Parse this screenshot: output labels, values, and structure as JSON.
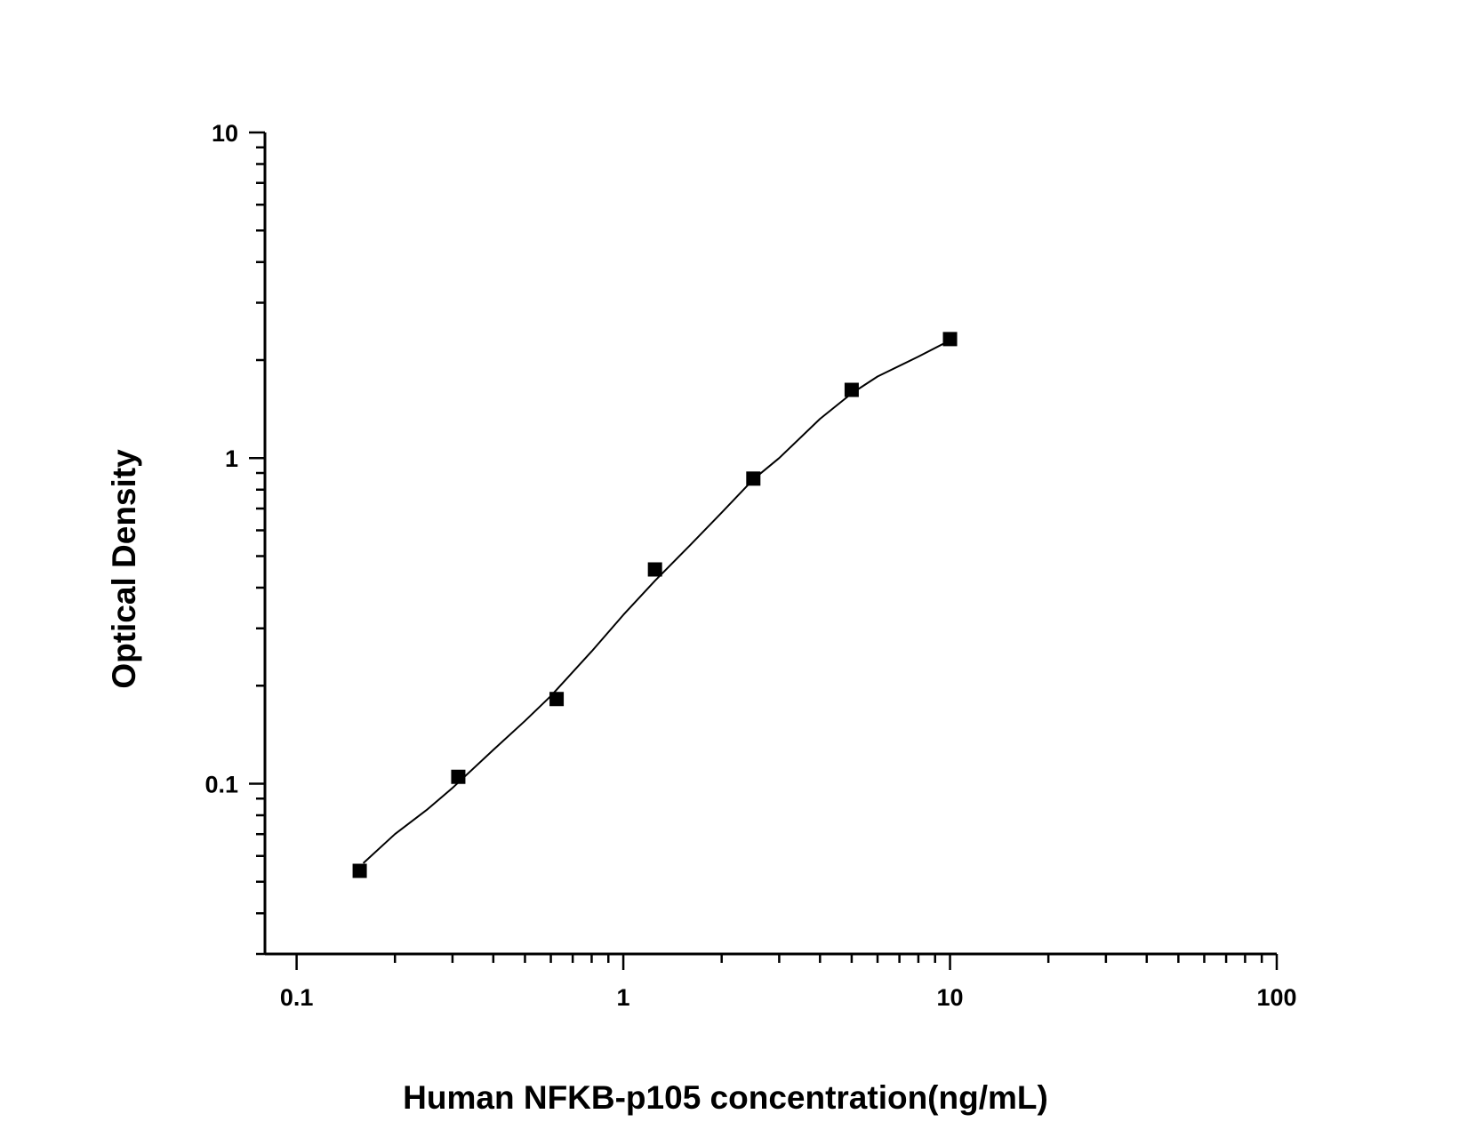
{
  "chart_data": {
    "type": "scatter",
    "title": "",
    "xlabel": "Human  NFKB-p105 concentration(ng/mL)",
    "ylabel": "Optical Density",
    "xscale": "log",
    "yscale": "log",
    "xlim": [
      0.08,
      100
    ],
    "ylim": [
      0.03,
      10
    ],
    "xticks": [
      {
        "value": 0.1,
        "label": "0.1"
      },
      {
        "value": 1,
        "label": "1"
      },
      {
        "value": 10,
        "label": "10"
      },
      {
        "value": 100,
        "label": "100"
      }
    ],
    "yticks": [
      {
        "value": 0.1,
        "label": "0.1"
      },
      {
        "value": 1,
        "label": "1"
      },
      {
        "value": 10,
        "label": "10"
      }
    ],
    "grid": false,
    "legend": "none",
    "series": [
      {
        "marker": "square",
        "color": "#000000",
        "x": [
          0.156,
          0.3125,
          0.625,
          1.25,
          2.5,
          5,
          10
        ],
        "y": [
          0.054,
          0.105,
          0.182,
          0.455,
          0.865,
          1.62,
          2.32
        ]
      }
    ],
    "fit_curve": {
      "color": "#000000",
      "x": [
        0.16,
        0.2,
        0.25,
        0.3,
        0.4,
        0.5,
        0.6,
        0.8,
        1.0,
        1.25,
        1.6,
        2.0,
        2.5,
        3.0,
        4.0,
        5.0,
        6.0,
        8.0,
        10.0
      ],
      "y": [
        0.057,
        0.07,
        0.083,
        0.097,
        0.127,
        0.156,
        0.186,
        0.255,
        0.33,
        0.42,
        0.54,
        0.68,
        0.86,
        1.0,
        1.32,
        1.58,
        1.78,
        2.05,
        2.3
      ]
    }
  }
}
